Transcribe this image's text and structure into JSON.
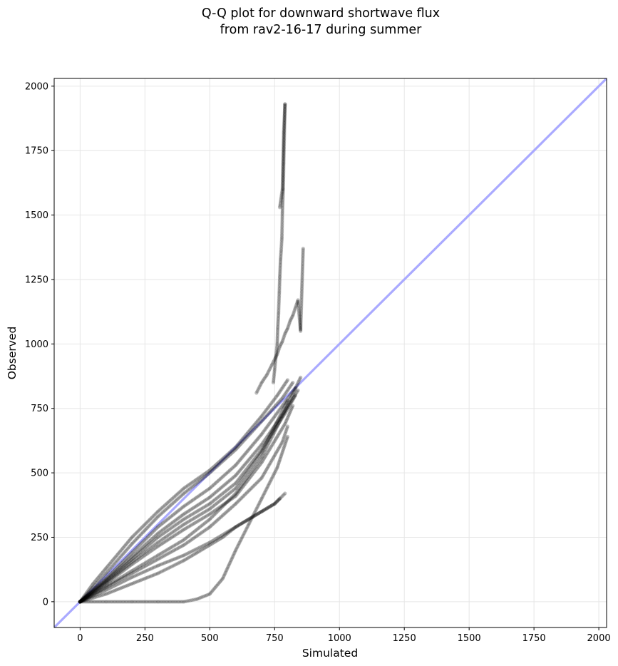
{
  "chart_data": {
    "type": "scatter",
    "title_lines": [
      "Q-Q plot for downward shortwave flux",
      "from rav2-16-17 during summer"
    ],
    "xlabel": "Simulated",
    "ylabel": "Observed",
    "xlim": [
      -100,
      2030
    ],
    "ylim": [
      -100,
      2030
    ],
    "xticks": [
      0,
      250,
      500,
      750,
      1000,
      1250,
      1500,
      1750,
      2000
    ],
    "yticks": [
      0,
      250,
      500,
      750,
      1000,
      1250,
      1500,
      1750,
      2000
    ],
    "grid": true,
    "reference_line": {
      "x": [
        -100,
        2030
      ],
      "y": [
        -100,
        2030
      ],
      "color": "#aaaaff"
    },
    "point_color": "#000000",
    "series": [
      {
        "x": [
          0,
          50,
          100,
          200,
          300,
          400,
          500,
          600,
          700,
          760,
          800
        ],
        "y": [
          0,
          70,
          130,
          250,
          350,
          440,
          510,
          600,
          720,
          800,
          860
        ]
      },
      {
        "x": [
          0,
          50,
          100,
          200,
          300,
          400,
          500,
          600,
          700,
          780,
          820
        ],
        "y": [
          0,
          55,
          110,
          225,
          330,
          420,
          500,
          590,
          700,
          790,
          850
        ]
      },
      {
        "x": [
          0,
          100,
          200,
          300,
          400,
          500,
          600,
          700,
          780,
          830
        ],
        "y": [
          0,
          90,
          190,
          290,
          370,
          440,
          530,
          650,
          760,
          830
        ]
      },
      {
        "x": [
          0,
          100,
          200,
          300,
          400,
          500,
          600,
          700,
          790,
          840
        ],
        "y": [
          0,
          85,
          175,
          265,
          340,
          405,
          490,
          610,
          740,
          820
        ]
      },
      {
        "x": [
          0,
          100,
          200,
          300,
          400,
          500,
          600,
          700,
          790,
          830
        ],
        "y": [
          0,
          80,
          165,
          250,
          320,
          380,
          460,
          590,
          730,
          800
        ]
      },
      {
        "x": [
          0,
          100,
          200,
          300,
          400,
          500,
          600,
          700,
          760,
          800
        ],
        "y": [
          0,
          75,
          155,
          230,
          300,
          360,
          440,
          580,
          700,
          780
        ]
      },
      {
        "x": [
          0,
          100,
          200,
          300,
          400,
          500,
          600,
          700,
          790,
          820
        ],
        "y": [
          0,
          70,
          145,
          215,
          280,
          340,
          410,
          540,
          690,
          760
        ]
      },
      {
        "x": [
          0,
          100,
          200,
          300,
          400,
          500,
          600,
          700,
          780,
          850
        ],
        "y": [
          0,
          60,
          120,
          180,
          240,
          320,
          420,
          560,
          720,
          870
        ]
      },
      {
        "x": [
          0,
          100,
          200,
          300,
          400,
          500,
          600,
          700,
          780,
          800
        ],
        "y": [
          0,
          55,
          110,
          165,
          220,
          290,
          380,
          480,
          620,
          680
        ]
      },
      {
        "x": [
          0,
          100,
          200,
          300,
          400,
          500,
          600,
          700,
          750,
          790
        ],
        "y": [
          0,
          45,
          95,
          140,
          180,
          230,
          290,
          350,
          380,
          420
        ]
      },
      {
        "x": [
          0,
          100,
          200,
          300,
          400,
          450,
          500,
          550,
          600,
          650,
          700,
          750,
          770
        ],
        "y": [
          0,
          30,
          70,
          110,
          160,
          190,
          220,
          250,
          290,
          320,
          350,
          380,
          400
        ]
      },
      {
        "x": [
          0,
          100,
          200,
          300,
          400,
          450,
          500,
          550,
          600,
          650,
          700,
          760,
          800
        ],
        "y": [
          0,
          0,
          0,
          0,
          0,
          10,
          30,
          90,
          200,
          300,
          400,
          520,
          640
        ]
      },
      {
        "x": [
          680,
          700,
          720,
          740,
          760,
          770,
          780,
          790,
          800,
          810,
          820,
          830,
          840,
          850,
          860
        ],
        "y": [
          810,
          850,
          880,
          920,
          960,
          990,
          1010,
          1040,
          1060,
          1090,
          1110,
          1140,
          1170,
          1050,
          1370
        ]
      },
      {
        "x": [
          745,
          750,
          755,
          760,
          762,
          765,
          768,
          770,
          773,
          775,
          778,
          780,
          783,
          785,
          790
        ],
        "y": [
          850,
          900,
          950,
          1000,
          1060,
          1120,
          1200,
          1260,
          1330,
          1360,
          1410,
          1510,
          1600,
          1700,
          1930
        ]
      },
      {
        "x": [
          770,
          780,
          785,
          790
        ],
        "y": [
          1530,
          1600,
          1820,
          1930
        ]
      }
    ]
  }
}
